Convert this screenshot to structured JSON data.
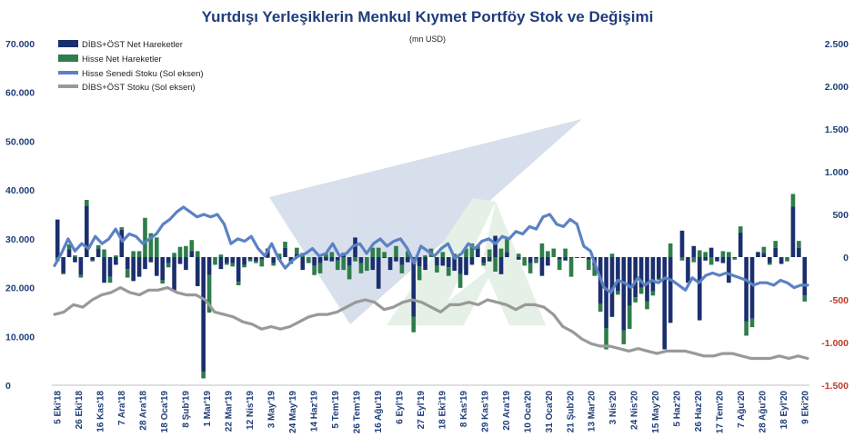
{
  "chart_data": {
    "type": "bar",
    "title": "Yurtdışı Yerleşiklerin Menkul Kıymet Portföy Stok ve Değişimi",
    "subtitle": "(mn USD)",
    "left_axis": {
      "ylim": [
        0,
        70000
      ],
      "ticks": [
        0,
        10000,
        20000,
        30000,
        40000,
        50000,
        60000,
        70000
      ],
      "tick_labels": [
        "0",
        "10.000",
        "20.000",
        "30.000",
        "40.000",
        "50.000",
        "60.000",
        "70.000"
      ]
    },
    "right_axis": {
      "ylim": [
        -1500,
        2500
      ],
      "ticks": [
        -1500,
        -1000,
        -500,
        0,
        500,
        1000,
        1500,
        2000,
        2500
      ],
      "tick_labels": [
        "-1.500",
        "-1.000",
        "-500",
        "0",
        "500",
        "1.000",
        "1.500",
        "2.000",
        "2.500"
      ]
    },
    "x_tick_labels": [
      "5 Eki'18",
      "26 Eki'18",
      "16 Kas'18",
      "7 Ara'18",
      "28 Ara'18",
      "18 Oca'19",
      "8 Şub'19",
      "1 Mar'19",
      "22 Mar'19",
      "12 Nis'19",
      "3 May'19",
      "24 May'19",
      "14 Haz'19",
      "5 Tem'19",
      "26 Tem'19",
      "16 Ağu'19",
      "6 Eyl'19",
      "27 Eyl'19",
      "18 Eki'19",
      "8 Kas'19",
      "29 Kas'19",
      "20 Ara'19",
      "10 Oca'20",
      "31 Oca'20",
      "21 Şub'20",
      "13 Mar'20",
      "3 Nis'20",
      "24 Nis'20",
      "15 May'20",
      "5 Haz'20",
      "26 Haz'20",
      "17 Tem'20",
      "7 Ağu'20",
      "28 Ağu'20",
      "18 Eyl'20",
      "9 Eki'20"
    ],
    "legend_position": "top-left",
    "series": [
      {
        "name": "DİBS+ÖST Net Hareketler",
        "type": "bar",
        "axis": "right",
        "color": "#1b2f6e",
        "values": [
          440,
          -190,
          90,
          -60,
          -210,
          600,
          -40,
          100,
          -300,
          -230,
          -90,
          320,
          -140,
          -280,
          -230,
          -140,
          -60,
          -220,
          -270,
          -70,
          -390,
          -80,
          -150,
          70,
          -340,
          -1340,
          -210,
          0,
          -140,
          -70,
          -70,
          -290,
          -90,
          -30,
          -50,
          -30,
          100,
          -70,
          -30,
          110,
          -50,
          40,
          -150,
          0,
          -100,
          -70,
          -40,
          -50,
          -40,
          50,
          -100,
          230,
          -70,
          0,
          -150,
          -370,
          -10,
          -150,
          -50,
          -90,
          -60,
          -700,
          -110,
          -150,
          0,
          -100,
          -100,
          -120,
          -160,
          -200,
          -210,
          -90,
          100,
          -70,
          -50,
          250,
          -200,
          60,
          0,
          -30,
          0,
          -70,
          -20,
          -220,
          -100,
          0,
          -30,
          -40,
          -10,
          -10,
          -10,
          -30,
          -100,
          -550,
          -830,
          -700,
          -400,
          -860,
          -570,
          -470,
          -360,
          -520,
          -400,
          -250,
          -1080,
          -770,
          0,
          310,
          -300,
          130,
          -740,
          -40,
          110,
          -50,
          -70,
          -300,
          -10,
          290,
          -750,
          -720,
          60,
          50,
          -70,
          110,
          -80,
          0,
          590,
          110,
          -450
        ]
      },
      {
        "name": "Hisse Net Hareketler",
        "type": "bar",
        "axis": "right",
        "color": "#2e7d4a",
        "values": [
          -50,
          -10,
          60,
          20,
          -30,
          70,
          -10,
          40,
          90,
          -70,
          20,
          30,
          -100,
          70,
          70,
          460,
          280,
          230,
          -40,
          -50,
          50,
          120,
          130,
          130,
          70,
          -80,
          -440,
          -90,
          30,
          -20,
          -40,
          -40,
          -30,
          -20,
          -20,
          -80,
          -10,
          -30,
          40,
          70,
          -30,
          70,
          50,
          -70,
          -110,
          -120,
          40,
          60,
          -110,
          -150,
          -160,
          -50,
          -120,
          -160,
          110,
          110,
          60,
          0,
          130,
          -100,
          70,
          -180,
          -160,
          20,
          100,
          -80,
          60,
          -100,
          40,
          -160,
          100,
          160,
          40,
          -30,
          90,
          -170,
          100,
          160,
          0,
          40,
          -100,
          -120,
          -50,
          160,
          70,
          100,
          -120,
          100,
          -220,
          0,
          0,
          -120,
          -120,
          -90,
          -250,
          40,
          -40,
          -160,
          -270,
          -60,
          -70,
          -90,
          -50,
          -20,
          0,
          160,
          0,
          -40,
          0,
          -60,
          80,
          60,
          -90,
          0,
          70,
          60,
          -20,
          70,
          -170,
          -100,
          0,
          70,
          -20,
          80,
          0,
          -50,
          150,
          80,
          -70
        ]
      },
      {
        "name": "Hisse Senedi Stoku (Sol eksen)",
        "type": "line",
        "axis": "left",
        "color": "#5b82c4",
        "values": [
          24500,
          27000,
          30000,
          27500,
          29000,
          28000,
          30500,
          29000,
          30000,
          32000,
          29500,
          31000,
          30500,
          29000,
          30000,
          31000,
          33000,
          34000,
          35500,
          36500,
          35500,
          34500,
          35000,
          34500,
          35000,
          33000,
          29000,
          30000,
          29500,
          30500,
          28000,
          26500,
          29000,
          26000,
          24000,
          25500,
          26500,
          27000,
          28000,
          26500,
          27000,
          29000,
          26500,
          27000,
          28500,
          29000,
          27000,
          29000,
          30000,
          28500,
          29500,
          30000,
          28000,
          25000,
          28500,
          27500,
          26500,
          28000,
          29000,
          26000,
          27000,
          29000,
          28000,
          29500,
          30000,
          29000,
          30500,
          30000,
          31500,
          31000,
          32500,
          32000,
          34500,
          35000,
          33000,
          32500,
          34000,
          33000,
          28500,
          27500,
          23500,
          20000,
          19000,
          21500,
          21000,
          20000,
          22000,
          20500,
          21500,
          21000,
          22000,
          21500,
          20500,
          19500,
          22000,
          21000,
          22500,
          23000,
          22500,
          23000,
          22500,
          22000,
          21500,
          20500,
          21000,
          21000,
          20500,
          21500,
          21000,
          20000,
          20500,
          20500
        ],
        "note": "values sampled along the plotted line"
      },
      {
        "name": "DİBS+ÖST Stoku (Sol eksen)",
        "type": "line",
        "axis": "left",
        "color": "#999999",
        "values": [
          14500,
          15000,
          16500,
          16000,
          17500,
          18500,
          19000,
          20000,
          19000,
          18500,
          19500,
          19500,
          20000,
          19000,
          18500,
          18500,
          17500,
          15000,
          14500,
          14000,
          13000,
          12500,
          11500,
          12000,
          11500,
          12000,
          13000,
          14000,
          14500,
          14500,
          15000,
          16000,
          17000,
          17500,
          17000,
          15500,
          16000,
          17000,
          17500,
          17000,
          16000,
          15000,
          16500,
          16500,
          17000,
          16500,
          17500,
          17000,
          16500,
          15500,
          16500,
          16500,
          16000,
          14500,
          12000,
          11000,
          9500,
          8500,
          8000,
          8000,
          7500,
          7000,
          7500,
          7000,
          6500,
          7000,
          7000,
          7000,
          6500,
          6000,
          6000,
          6500,
          6500,
          6000,
          5500,
          5500,
          5500,
          6000,
          5500,
          6000,
          5500
        ],
        "note": "values sampled along the plotted line"
      }
    ]
  }
}
